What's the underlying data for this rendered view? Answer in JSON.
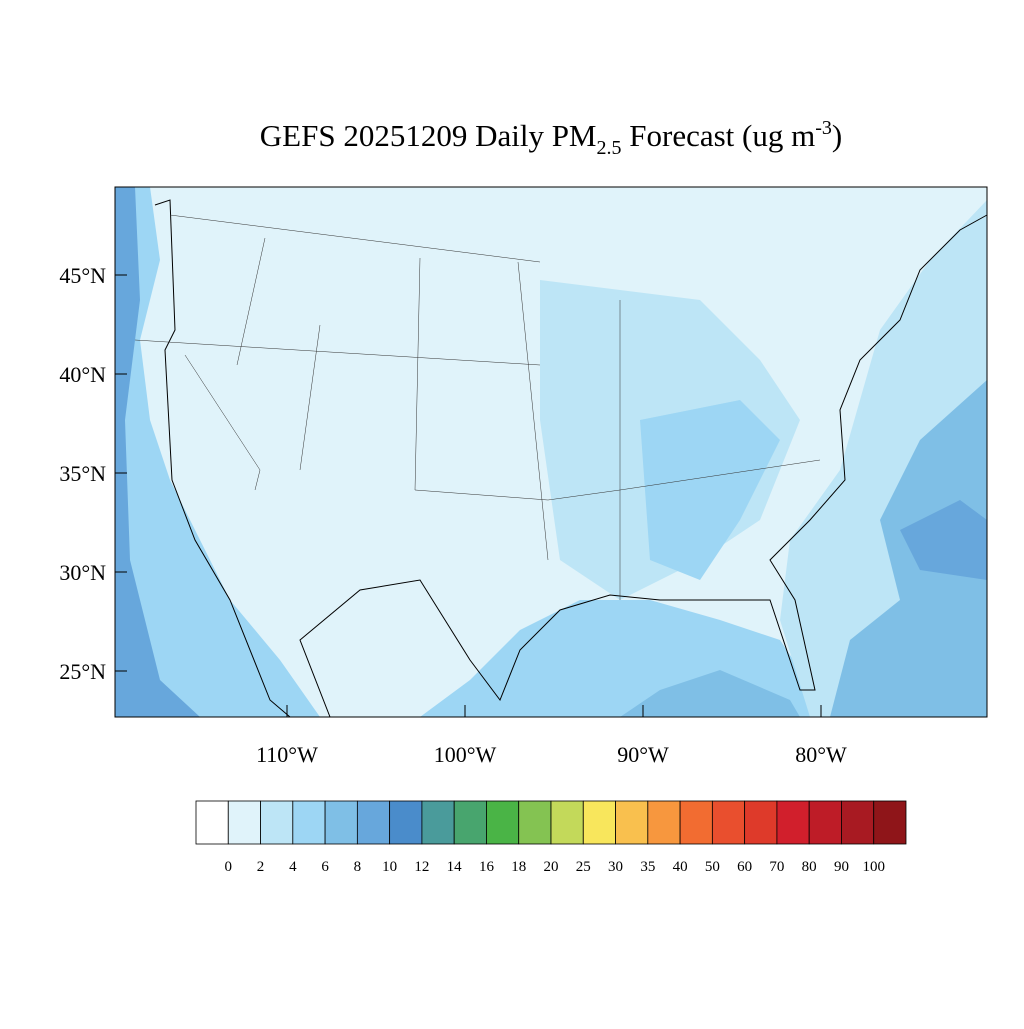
{
  "title": {
    "text_1": "GEFS 20251209 Daily PM",
    "subscript": "2.5",
    "text_2": " Forecast (ug m",
    "superscript": "-3",
    "text_3": ")"
  },
  "map": {
    "lat_ticks": [
      {
        "value": 45,
        "label": "45°N"
      },
      {
        "value": 40,
        "label": "40°N"
      },
      {
        "value": 35,
        "label": "35°N"
      },
      {
        "value": 30,
        "label": "30°N"
      },
      {
        "value": 25,
        "label": "25°N"
      }
    ],
    "lon_ticks": [
      {
        "value": -110,
        "label": "110°W"
      },
      {
        "value": -100,
        "label": "100°W"
      },
      {
        "value": -90,
        "label": "90°W"
      },
      {
        "value": -80,
        "label": "80°W"
      }
    ]
  },
  "colorbar": {
    "levels": [
      0,
      2,
      4,
      6,
      8,
      10,
      12,
      14,
      16,
      18,
      20,
      25,
      30,
      35,
      40,
      50,
      60,
      70,
      80,
      90,
      100
    ],
    "colors": [
      "#ffffff",
      "#e0f3fa",
      "#bde5f6",
      "#9dd6f4",
      "#7fbfe6",
      "#67a7dc",
      "#4a8ccb",
      "#4a9b9b",
      "#48a56e",
      "#4ab446",
      "#84c352",
      "#c3d95a",
      "#f8e65c",
      "#f9c04e",
      "#f7973e",
      "#f26c31",
      "#e94f2e",
      "#de3a2a",
      "#d11f2c",
      "#be1c27",
      "#a81a22",
      "#8f1519"
    ]
  }
}
